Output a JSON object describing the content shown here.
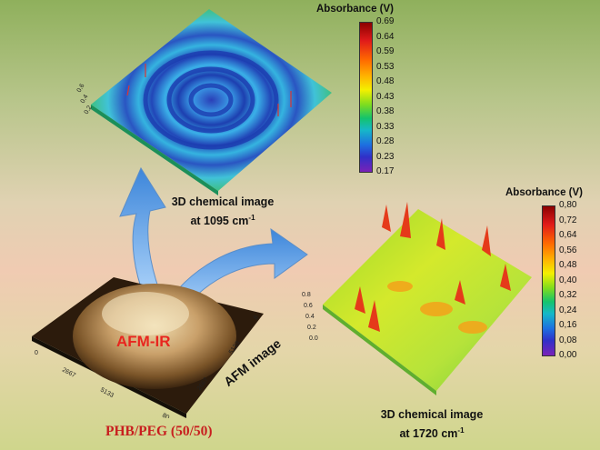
{
  "top_image": {
    "colorbar_title": "Absorbance (V)",
    "colorbar_ticks": [
      "0.69",
      "0.64",
      "0.59",
      "0.53",
      "0.48",
      "0.43",
      "0.38",
      "0.33",
      "0.28",
      "0.23",
      "0.17"
    ],
    "caption_line1": "3D chemical image",
    "caption_line2_prefix": "at 1095 cm",
    "caption_sup": "-1"
  },
  "bottom_image": {
    "colorbar_title": "Absorbance (V)",
    "colorbar_ticks": [
      "0,80",
      "0,72",
      "0,64",
      "0,56",
      "0,48",
      "0,40",
      "0,32",
      "0,24",
      "0,16",
      "0,08",
      "0,00"
    ],
    "caption_line1": "3D chemical image",
    "caption_line2_prefix": "at 1720 cm",
    "caption_sup": "-1",
    "axis_ticks": [
      "0.8",
      "0.6",
      "0.4",
      "0.2",
      "0.0"
    ]
  },
  "afm": {
    "overlay_label": "AFM-IR",
    "side_label": "AFM image",
    "axis_ticks": [
      "0",
      "2667",
      "5133",
      "80",
      "2667",
      "5133",
      "8"
    ]
  },
  "sample_label": "PHB/PEG (50/50)",
  "colors": {
    "label_red": "#e8261f",
    "arrow_blue": "#4a8fe0"
  }
}
